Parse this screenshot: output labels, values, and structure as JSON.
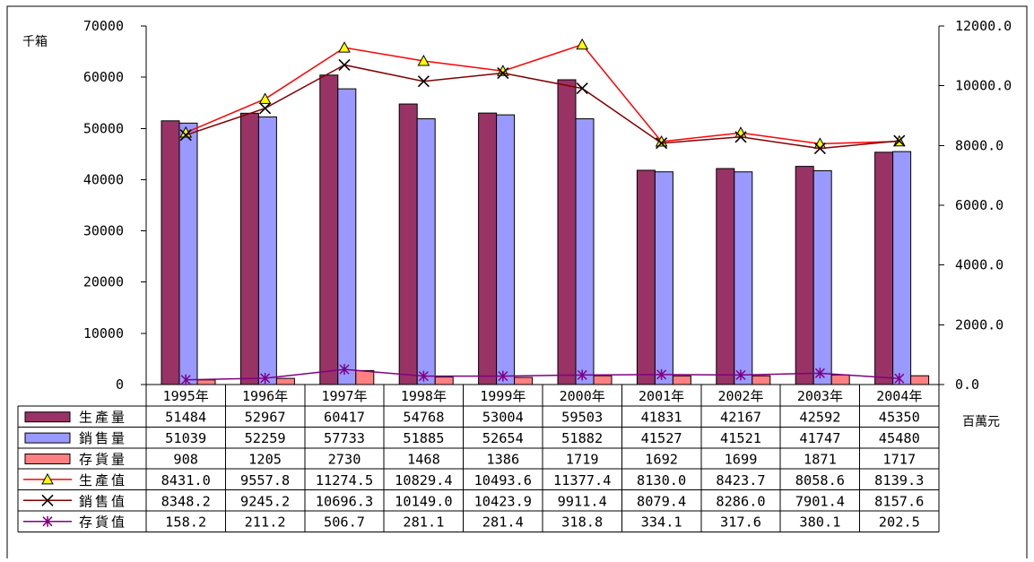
{
  "chart_data": {
    "type": "bar",
    "categories": [
      "1995年",
      "1996年",
      "1997年",
      "1998年",
      "1999年",
      "2000年",
      "2001年",
      "2002年",
      "2003年",
      "2004年"
    ],
    "y_left": {
      "unit": "千箱",
      "min": 0,
      "max": 70000,
      "ticks": [
        0,
        10000,
        20000,
        30000,
        40000,
        50000,
        60000,
        70000
      ]
    },
    "y_right": {
      "unit": "百萬元",
      "min": 0,
      "max": 12000,
      "ticks": [
        "0.0",
        "2000.0",
        "4000.0",
        "6000.0",
        "8000.0",
        "10000.0",
        "12000.0"
      ]
    },
    "grid": false,
    "legend": "data-table",
    "bar_series": [
      {
        "name": "生產量",
        "color": "#993366",
        "values": [
          51484,
          52967,
          60417,
          54768,
          53004,
          59503,
          41831,
          42167,
          42592,
          45350
        ],
        "labels": [
          "51484",
          "52967",
          "60417",
          "54768",
          "53004",
          "59503",
          "41831",
          "42167",
          "42592",
          "45350"
        ]
      },
      {
        "name": "銷售量",
        "color": "#9999ff",
        "values": [
          51039,
          52259,
          57733,
          51885,
          52654,
          51882,
          41527,
          41521,
          41747,
          45480
        ],
        "labels": [
          "51039",
          "52259",
          "57733",
          "51885",
          "52654",
          "51882",
          "41527",
          "41521",
          "41747",
          "45480"
        ]
      },
      {
        "name": "存貨量",
        "color": "#ff8080",
        "values": [
          908,
          1205,
          2730,
          1468,
          1386,
          1719,
          1692,
          1699,
          1871,
          1717
        ],
        "labels": [
          "908",
          "1205",
          "2730",
          "1468",
          "1386",
          "1719",
          "1692",
          "1699",
          "1871",
          "1717"
        ]
      }
    ],
    "line_series": [
      {
        "name": "生產值",
        "color": "#ff0000",
        "marker": "triangle",
        "marker_fill": "#ffff00",
        "values": [
          8431.0,
          9557.8,
          11274.5,
          10829.4,
          10493.6,
          11377.4,
          8130.0,
          8423.7,
          8058.6,
          8139.3
        ],
        "labels": [
          "8431.0",
          "9557.8",
          "11274.5",
          "10829.4",
          "10493.6",
          "11377.4",
          "8130.0",
          "8423.7",
          "8058.6",
          "8139.3"
        ]
      },
      {
        "name": "銷售值",
        "color": "#800000",
        "marker": "x",
        "marker_fill": "#000000",
        "values": [
          8348.2,
          9245.2,
          10696.3,
          10149.0,
          10423.9,
          9911.4,
          8079.4,
          8286.0,
          7901.4,
          8157.6
        ],
        "labels": [
          "8348.2",
          "9245.2",
          "10696.3",
          "10149.0",
          "10423.9",
          "9911.4",
          "8079.4",
          "8286.0",
          "7901.4",
          "8157.6"
        ]
      },
      {
        "name": "存貨值",
        "color": "#800080",
        "marker": "star",
        "marker_fill": "#800080",
        "values": [
          158.2,
          211.2,
          506.7,
          281.1,
          281.4,
          318.8,
          334.1,
          317.6,
          380.1,
          202.5
        ],
        "labels": [
          "158.2",
          "211.2",
          "506.7",
          "281.1",
          "281.4",
          "318.8",
          "334.1",
          "317.6",
          "380.1",
          "202.5"
        ]
      }
    ]
  }
}
